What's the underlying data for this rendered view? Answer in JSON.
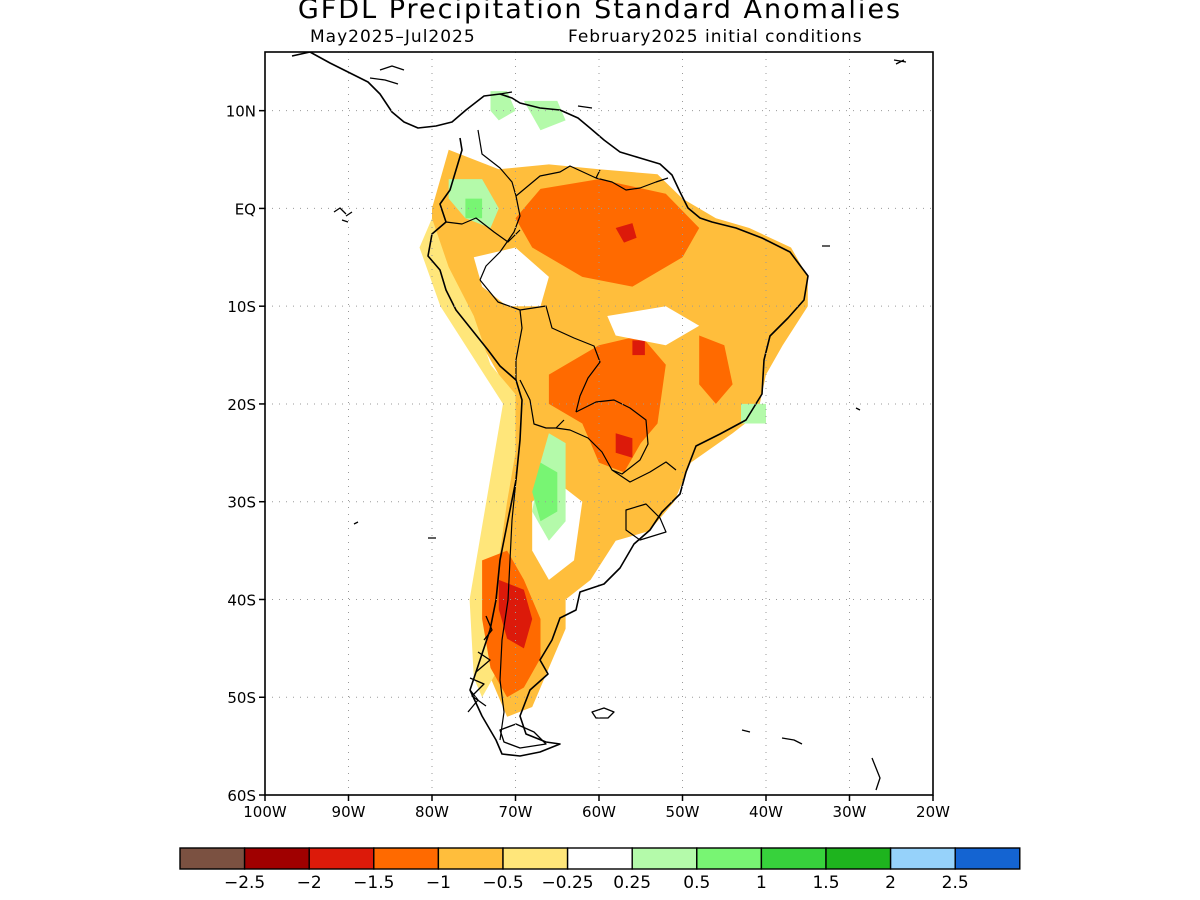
{
  "title": "GFDL Precipitation Standard Anomalies",
  "subtitle_left": "May2025–Jul2025",
  "subtitle_right": "February2025 initial conditions",
  "map": {
    "lat_labels": [
      {
        "lat": 10,
        "label": "10N"
      },
      {
        "lat": 0,
        "label": "EQ"
      },
      {
        "lat": -10,
        "label": "10S"
      },
      {
        "lat": -20,
        "label": "20S"
      },
      {
        "lat": -30,
        "label": "30S"
      },
      {
        "lat": -40,
        "label": "40S"
      },
      {
        "lat": -50,
        "label": "50S"
      },
      {
        "lat": -60,
        "label": "60S"
      }
    ],
    "lon_labels": [
      {
        "lon": -100,
        "label": "100W"
      },
      {
        "lon": -90,
        "label": "90W"
      },
      {
        "lon": -80,
        "label": "80W"
      },
      {
        "lon": -70,
        "label": "70W"
      },
      {
        "lon": -60,
        "label": "60W"
      },
      {
        "lon": -50,
        "label": "50W"
      },
      {
        "lon": -40,
        "label": "40W"
      },
      {
        "lon": -30,
        "label": "30W"
      },
      {
        "lon": -20,
        "label": "20W"
      }
    ],
    "lon_range": [
      -100,
      -20
    ],
    "lat_range": [
      -60,
      16
    ],
    "grid": "dotted"
  },
  "colorbar": {
    "colors": [
      "#7b5141",
      "#a00000",
      "#dc1a0a",
      "#ff6a00",
      "#ffbe3c",
      "#ffe67a",
      "#ffffff",
      "#b4faaa",
      "#78f573",
      "#37d23c",
      "#1eb41e",
      "#96d2fa",
      "#1464d2"
    ],
    "labels": [
      "−2.5",
      "−2",
      "−1.5",
      "−1",
      "−0.5",
      "−0.25",
      "0.25",
      "0.5",
      "1",
      "1.5",
      "2",
      "2.5"
    ]
  },
  "anomaly_patches": [
    {
      "level": "-1",
      "color": "#ffbe3c",
      "points": [
        [
          -78,
          6
        ],
        [
          -72,
          4
        ],
        [
          -66,
          4.5
        ],
        [
          -60,
          4
        ],
        [
          -53,
          3.5
        ],
        [
          -50,
          1
        ],
        [
          -46,
          -1
        ],
        [
          -42,
          -2
        ],
        [
          -37,
          -4
        ],
        [
          -35,
          -7
        ],
        [
          -35,
          -10
        ],
        [
          -38,
          -14
        ],
        [
          -40,
          -17
        ],
        [
          -41,
          -21
        ],
        [
          -44,
          -23
        ],
        [
          -49,
          -26
        ],
        [
          -51,
          -30
        ],
        [
          -54,
          -33
        ],
        [
          -58,
          -34
        ],
        [
          -61,
          -38
        ],
        [
          -64,
          -40
        ],
        [
          -64,
          -43
        ],
        [
          -66,
          -47
        ],
        [
          -68,
          -51
        ],
        [
          -71,
          -52
        ],
        [
          -73,
          -48
        ],
        [
          -74,
          -43
        ],
        [
          -73,
          -36
        ],
        [
          -71,
          -28
        ],
        [
          -70,
          -20
        ],
        [
          -74,
          -14
        ],
        [
          -77,
          -10
        ],
        [
          -80,
          -5
        ],
        [
          -80,
          0
        ]
      ]
    },
    {
      "level": "-0.25",
      "color": "#ffe67a",
      "points": [
        [
          -80,
          -1
        ],
        [
          -78,
          -6
        ],
        [
          -75,
          -11
        ],
        [
          -73,
          -16
        ],
        [
          -70,
          -19
        ],
        [
          -70,
          -25
        ],
        [
          -71,
          -30
        ],
        [
          -72,
          -36
        ],
        [
          -73,
          -42
        ],
        [
          -72,
          -47
        ],
        [
          -74,
          -50
        ],
        [
          -75,
          -48
        ],
        [
          -75.5,
          -40
        ],
        [
          -73.5,
          -30
        ],
        [
          -71.5,
          -20
        ],
        [
          -76,
          -14
        ],
        [
          -79,
          -10
        ],
        [
          -81.5,
          -4
        ]
      ]
    },
    {
      "level": "-1.5",
      "color": "#ff6a00",
      "points": [
        [
          -67,
          2
        ],
        [
          -60,
          3
        ],
        [
          -52,
          1.5
        ],
        [
          -48,
          -2
        ],
        [
          -50,
          -5
        ],
        [
          -56,
          -8
        ],
        [
          -62,
          -7
        ],
        [
          -68,
          -4
        ],
        [
          -70,
          -1
        ]
      ]
    },
    {
      "level": "-1.5",
      "color": "#ff6a00",
      "points": [
        [
          -66,
          -17
        ],
        [
          -60,
          -14
        ],
        [
          -55,
          -13
        ],
        [
          -52,
          -16
        ],
        [
          -53,
          -22
        ],
        [
          -55,
          -24
        ],
        [
          -57,
          -27
        ],
        [
          -60,
          -26
        ],
        [
          -62,
          -22
        ],
        [
          -66,
          -20
        ]
      ]
    },
    {
      "level": "-1.5",
      "color": "#ff6a00",
      "points": [
        [
          -48,
          -13
        ],
        [
          -45,
          -14
        ],
        [
          -44,
          -18
        ],
        [
          -46,
          -20
        ],
        [
          -48,
          -18
        ]
      ]
    },
    {
      "level": "-1.5",
      "color": "#ff6a00",
      "points": [
        [
          -74,
          -36
        ],
        [
          -71,
          -35
        ],
        [
          -69,
          -38
        ],
        [
          -67,
          -42
        ],
        [
          -67,
          -46
        ],
        [
          -69,
          -49
        ],
        [
          -71,
          -50
        ],
        [
          -73,
          -47
        ],
        [
          -74,
          -42
        ]
      ]
    },
    {
      "level": "-2",
      "color": "#dc1a0a",
      "points": [
        [
          -72,
          -38
        ],
        [
          -69,
          -39
        ],
        [
          -68,
          -42
        ],
        [
          -69,
          -45
        ],
        [
          -71,
          -44
        ],
        [
          -72,
          -41
        ]
      ]
    },
    {
      "level": "-2",
      "color": "#dc1a0a",
      "points": [
        [
          -58,
          -2
        ],
        [
          -56,
          -1.5
        ],
        [
          -55.5,
          -3
        ],
        [
          -57,
          -3.5
        ]
      ]
    },
    {
      "level": "-2",
      "color": "#dc1a0a",
      "points": [
        [
          -58,
          -23
        ],
        [
          -56,
          -23.5
        ],
        [
          -56,
          -25.5
        ],
        [
          -58,
          -25
        ]
      ]
    },
    {
      "level": "-2",
      "color": "#dc1a0a",
      "points": [
        [
          -56,
          -13.5
        ],
        [
          -54.5,
          -13.5
        ],
        [
          -54.5,
          -15
        ],
        [
          -56,
          -15
        ]
      ]
    },
    {
      "level": "0.25",
      "color": "#ffffff",
      "points": [
        [
          -75,
          -5
        ],
        [
          -70,
          -4
        ],
        [
          -66,
          -7
        ],
        [
          -67,
          -10
        ],
        [
          -71,
          -10
        ],
        [
          -74,
          -8
        ]
      ]
    },
    {
      "level": "0.25",
      "color": "#ffffff",
      "points": [
        [
          -65,
          -28
        ],
        [
          -62,
          -30
        ],
        [
          -63,
          -36
        ],
        [
          -66,
          -38
        ],
        [
          -68,
          -35
        ],
        [
          -68,
          -30
        ]
      ]
    },
    {
      "level": "0.25",
      "color": "#ffffff",
      "points": [
        [
          -59,
          -11
        ],
        [
          -52,
          -10
        ],
        [
          -48,
          -12
        ],
        [
          -52,
          -14
        ],
        [
          -58,
          -13
        ]
      ]
    },
    {
      "level": "0.5",
      "color": "#b4faaa",
      "points": [
        [
          -66,
          -23
        ],
        [
          -64,
          -24
        ],
        [
          -64,
          -32
        ],
        [
          -66,
          -34
        ],
        [
          -68,
          -31
        ],
        [
          -67,
          -26
        ]
      ]
    },
    {
      "level": "0.5",
      "color": "#b4faaa",
      "points": [
        [
          -78,
          3
        ],
        [
          -74,
          3
        ],
        [
          -72,
          0
        ],
        [
          -73,
          -2
        ],
        [
          -76,
          -1
        ],
        [
          -78,
          1
        ]
      ]
    },
    {
      "level": "0.5",
      "color": "#b4faaa",
      "points": [
        [
          -73,
          12
        ],
        [
          -71,
          12
        ],
        [
          -70,
          10
        ],
        [
          -72,
          9
        ],
        [
          -73,
          10
        ]
      ]
    },
    {
      "level": "0.5",
      "color": "#b4faaa",
      "points": [
        [
          -69,
          11
        ],
        [
          -65,
          11
        ],
        [
          -64,
          9
        ],
        [
          -67,
          8
        ]
      ]
    },
    {
      "level": "0.5",
      "color": "#b4faaa",
      "points": [
        [
          -43,
          -20
        ],
        [
          -40,
          -20
        ],
        [
          -40,
          -22
        ],
        [
          -43,
          -22
        ]
      ]
    },
    {
      "level": "1",
      "color": "#78f573",
      "points": [
        [
          -67,
          -26
        ],
        [
          -65,
          -27
        ],
        [
          -65,
          -31
        ],
        [
          -67,
          -32
        ],
        [
          -68,
          -29
        ]
      ]
    },
    {
      "level": "1",
      "color": "#78f573",
      "points": [
        [
          -76,
          1
        ],
        [
          -74,
          1
        ],
        [
          -74,
          -1
        ],
        [
          -76,
          -1
        ]
      ]
    }
  ]
}
